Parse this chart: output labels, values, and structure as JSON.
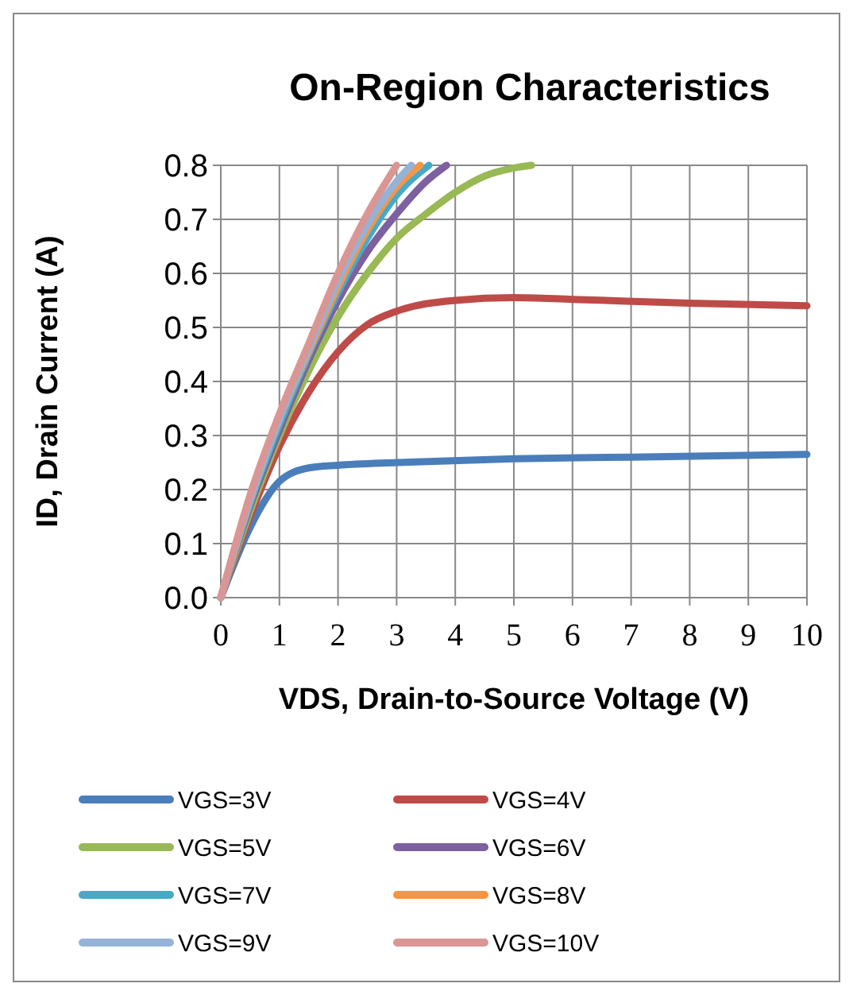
{
  "chart_data": {
    "type": "line",
    "title": "On-Region Characteristics",
    "xlabel": "VDS, Drain-to-Source Voltage (V)",
    "ylabel": "ID, Drain Current (A)",
    "xlim": [
      0,
      10
    ],
    "xticks": [
      0,
      1,
      2,
      3,
      4,
      5,
      6,
      7,
      8,
      9,
      10
    ],
    "ylim": [
      0,
      0.8
    ],
    "yticks": [
      {
        "value": 0,
        "label": "0.0"
      },
      0.1,
      0.2,
      0.3,
      0.4,
      0.5,
      0.6,
      0.7,
      0.8
    ],
    "grid": true,
    "legend": "bottom",
    "line_style": "solid",
    "series": [
      {
        "name": "VGS=3V",
        "color": "#4a7ebb",
        "x": [
          0,
          0.5,
          1,
          1.5,
          2,
          3,
          5,
          7,
          10
        ],
        "values": [
          0,
          0.13,
          0.215,
          0.24,
          0.245,
          0.25,
          0.257,
          0.26,
          0.265
        ]
      },
      {
        "name": "VGS=4V",
        "color": "#be4b48",
        "x": [
          0,
          0.5,
          1,
          1.5,
          2,
          2.5,
          3,
          4,
          5,
          6,
          8,
          10
        ],
        "values": [
          0,
          0.15,
          0.28,
          0.38,
          0.455,
          0.505,
          0.53,
          0.55,
          0.555,
          0.552,
          0.545,
          0.54
        ]
      },
      {
        "name": "VGS=5V",
        "color": "#98b954",
        "x": [
          0,
          0.5,
          1,
          1.5,
          2,
          2.5,
          3,
          3.5,
          4,
          4.5,
          5,
          5.3
        ],
        "values": [
          0,
          0.16,
          0.3,
          0.42,
          0.52,
          0.6,
          0.665,
          0.71,
          0.75,
          0.78,
          0.795,
          0.8
        ]
      },
      {
        "name": "VGS=6V",
        "color": "#7d60a0",
        "x": [
          0,
          0.5,
          1,
          1.5,
          2,
          2.5,
          3,
          3.5,
          3.85
        ],
        "values": [
          0,
          0.17,
          0.31,
          0.44,
          0.55,
          0.64,
          0.71,
          0.77,
          0.8
        ]
      },
      {
        "name": "VGS=7V",
        "color": "#46aac5",
        "x": [
          0,
          0.5,
          1,
          1.5,
          2,
          2.5,
          3,
          3.55
        ],
        "values": [
          0,
          0.175,
          0.32,
          0.45,
          0.565,
          0.665,
          0.745,
          0.8
        ]
      },
      {
        "name": "VGS=8V",
        "color": "#f69545",
        "x": [
          0,
          0.5,
          1,
          1.5,
          2,
          2.5,
          3,
          3.4
        ],
        "values": [
          0,
          0.18,
          0.33,
          0.455,
          0.575,
          0.68,
          0.76,
          0.8
        ]
      },
      {
        "name": "VGS=9V",
        "color": "#95b3d7",
        "x": [
          0,
          0.5,
          1,
          1.5,
          2,
          2.5,
          3,
          3.25
        ],
        "values": [
          0,
          0.18,
          0.33,
          0.46,
          0.585,
          0.69,
          0.77,
          0.8
        ]
      },
      {
        "name": "VGS=10V",
        "color": "#d99694",
        "x": [
          0,
          0.5,
          1,
          1.5,
          2,
          2.5,
          3
        ],
        "values": [
          0,
          0.19,
          0.34,
          0.47,
          0.6,
          0.71,
          0.8
        ]
      }
    ]
  }
}
